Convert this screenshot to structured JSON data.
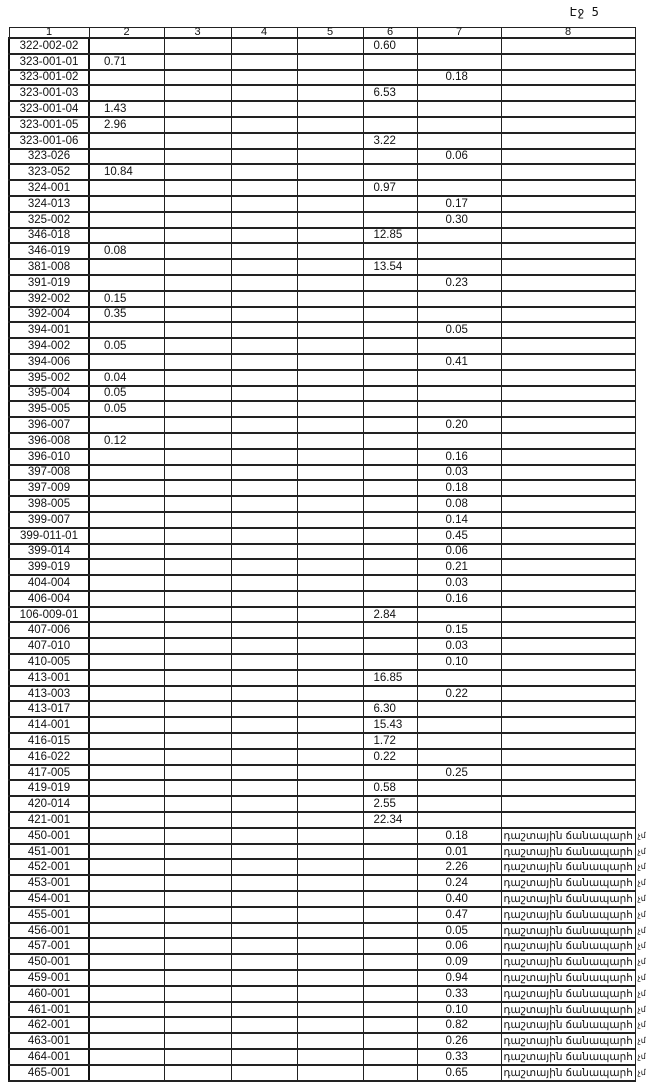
{
  "page_label": "Էջ 5",
  "columns": [
    "1",
    "2",
    "3",
    "4",
    "5",
    "6",
    "7",
    "8"
  ],
  "road_text": "դաշտային ճանապարհ",
  "road_tail": "չմ",
  "rows": [
    [
      "322-002-02",
      "",
      "0.60",
      "",
      ""
    ],
    [
      "323-001-01",
      "0.71",
      "",
      "",
      ""
    ],
    [
      "323-001-02",
      "",
      "",
      "0.18",
      ""
    ],
    [
      "323-001-03",
      "",
      "6.53",
      "",
      ""
    ],
    [
      "323-001-04",
      "1.43",
      "",
      "",
      ""
    ],
    [
      "323-001-05",
      "2.96",
      "",
      "",
      ""
    ],
    [
      "323-001-06",
      "",
      "3.22",
      "",
      ""
    ],
    [
      "323-026",
      "",
      "",
      "0.06",
      ""
    ],
    [
      "323-052",
      "10.84",
      "",
      "",
      ""
    ],
    [
      "324-001",
      "",
      "0.97",
      "",
      ""
    ],
    [
      "324-013",
      "",
      "",
      "0.17",
      ""
    ],
    [
      "325-002",
      "",
      "",
      "0.30",
      ""
    ],
    [
      "346-018",
      "",
      "12.85",
      "",
      ""
    ],
    [
      "346-019",
      "0.08",
      "",
      "",
      ""
    ],
    [
      "381-008",
      "",
      "13.54",
      "",
      ""
    ],
    [
      "391-019",
      "",
      "",
      "0.23",
      ""
    ],
    [
      "392-002",
      "0.15",
      "",
      "",
      ""
    ],
    [
      "392-004",
      "0.35",
      "",
      "",
      ""
    ],
    [
      "394-001",
      "",
      "",
      "0.05",
      ""
    ],
    [
      "394-002",
      "0.05",
      "",
      "",
      ""
    ],
    [
      "394-006",
      "",
      "",
      "0.41",
      ""
    ],
    [
      "395-002",
      "0.04",
      "",
      "",
      ""
    ],
    [
      "395-004",
      "0.05",
      "",
      "",
      ""
    ],
    [
      "395-005",
      "0.05",
      "",
      "",
      ""
    ],
    [
      "396-007",
      "",
      "",
      "0.20",
      ""
    ],
    [
      "396-008",
      "0.12",
      "",
      "",
      ""
    ],
    [
      "396-010",
      "",
      "",
      "0.16",
      ""
    ],
    [
      "397-008",
      "",
      "",
      "0.03",
      ""
    ],
    [
      "397-009",
      "",
      "",
      "0.18",
      ""
    ],
    [
      "398-005",
      "",
      "",
      "0.08",
      ""
    ],
    [
      "399-007",
      "",
      "",
      "0.14",
      ""
    ],
    [
      "399-011-01",
      "",
      "",
      "0.45",
      ""
    ],
    [
      "399-014",
      "",
      "",
      "0.06",
      ""
    ],
    [
      "399-019",
      "",
      "",
      "0.21",
      ""
    ],
    [
      "404-004",
      "",
      "",
      "0.03",
      ""
    ],
    [
      "406-004",
      "",
      "",
      "0.16",
      ""
    ],
    [
      "106-009-01",
      "",
      "2.84",
      "",
      ""
    ],
    [
      "407-006",
      "",
      "",
      "0.15",
      ""
    ],
    [
      "407-010",
      "",
      "",
      "0.03",
      ""
    ],
    [
      "410-005",
      "",
      "",
      "0.10",
      ""
    ],
    [
      "413-001",
      "",
      "16.85",
      "",
      ""
    ],
    [
      "413-003",
      "",
      "",
      "0.22",
      ""
    ],
    [
      "413-017",
      "",
      "6.30",
      "",
      ""
    ],
    [
      "414-001",
      "",
      "15.43",
      "",
      ""
    ],
    [
      "416-015",
      "",
      "1.72",
      "",
      ""
    ],
    [
      "416-022",
      "",
      "0.22",
      "",
      ""
    ],
    [
      "417-005",
      "",
      "",
      "0.25",
      ""
    ],
    [
      "419-019",
      "",
      "0.58",
      "",
      ""
    ],
    [
      "420-014",
      "",
      "2.55",
      "",
      ""
    ],
    [
      "421-001",
      "",
      "22.34",
      "",
      ""
    ],
    [
      "450-001",
      "",
      "",
      "0.18",
      "road"
    ],
    [
      "451-001",
      "",
      "",
      "0.01",
      "road"
    ],
    [
      "452-001",
      "",
      "",
      "2.26",
      "road"
    ],
    [
      "453-001",
      "",
      "",
      "0.24",
      "road"
    ],
    [
      "454-001",
      "",
      "",
      "0.40",
      "road"
    ],
    [
      "455-001",
      "",
      "",
      "0.47",
      "road"
    ],
    [
      "456-001",
      "",
      "",
      "0.05",
      "road"
    ],
    [
      "457-001",
      "",
      "",
      "0.06",
      "road"
    ],
    [
      "450-001",
      "",
      "",
      "0.09",
      "road"
    ],
    [
      "459-001",
      "",
      "",
      "0.94",
      "road"
    ],
    [
      "460-001",
      "",
      "",
      "0.33",
      "road"
    ],
    [
      "461-001",
      "",
      "",
      "0.10",
      "road"
    ],
    [
      "462-001",
      "",
      "",
      "0.82",
      "road"
    ],
    [
      "463-001",
      "",
      "",
      "0.26",
      "road"
    ],
    [
      "464-001",
      "",
      "",
      "0.33",
      "road"
    ],
    [
      "465-001",
      "",
      "",
      "0.65",
      "road"
    ]
  ]
}
